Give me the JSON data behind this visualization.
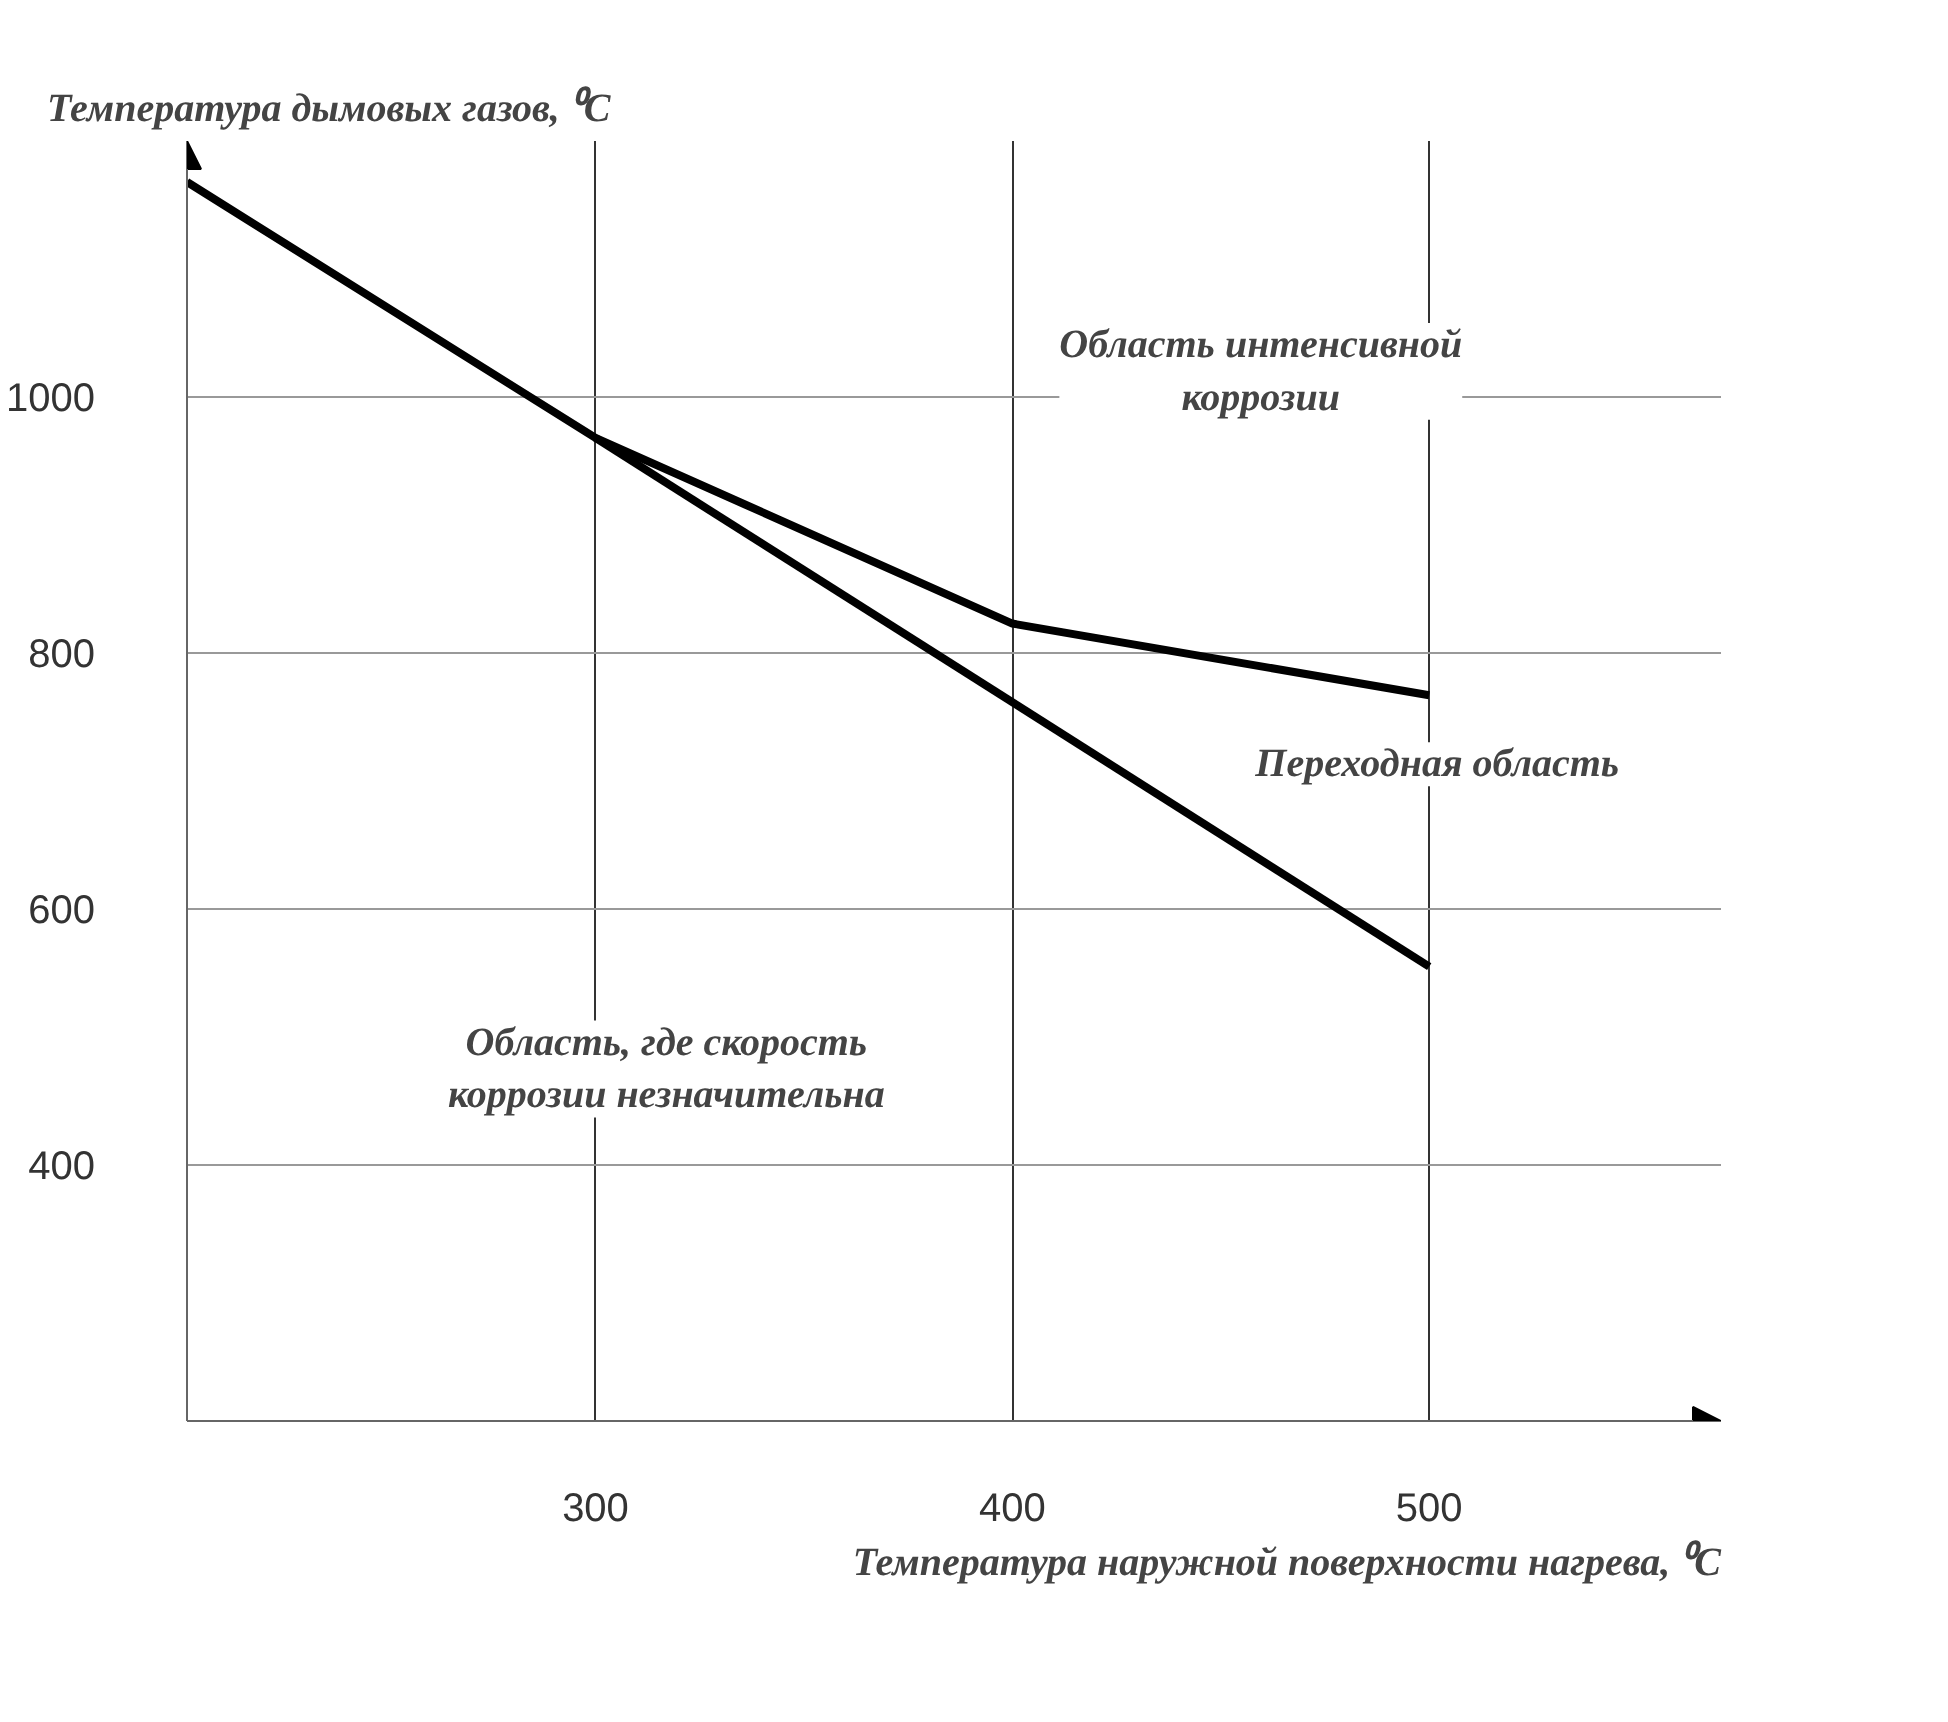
{
  "chart_data": {
    "type": "line",
    "ylabel": "Температура дымовых газов, ⁰C",
    "xlabel": "Температура наружной поверхности нагрева, ⁰C",
    "xlim": [
      202,
      570
    ],
    "ylim": [
      200,
      1200
    ],
    "xticks": [
      300,
      400,
      500
    ],
    "yticks": [
      400,
      600,
      800,
      1000
    ],
    "grid": true,
    "marker": "none",
    "line_style": "solid",
    "series": [
      {
        "color": "#000000",
        "x": [
          202,
          300,
          400,
          500
        ],
        "values": [
          1168,
          968,
          823,
          767
        ]
      },
      {
        "color": "#000000",
        "x": [
          300,
          500
        ],
        "values": [
          968,
          555
        ]
      }
    ],
    "annotations": [
      "Область интенсивной\nкоррозии",
      "Переходная область",
      "Область, где скорость\nкоррозии незначительна"
    ]
  }
}
